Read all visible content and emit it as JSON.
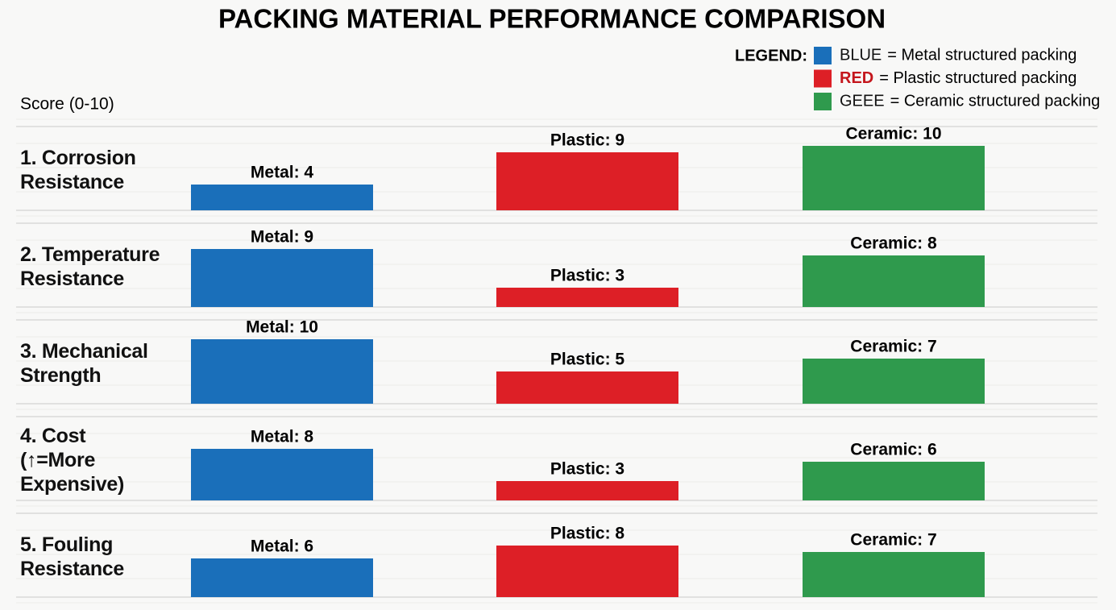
{
  "chart_data": {
    "type": "bar",
    "title": "PACKING MATERIAL PERFORMANCE COMPARISON",
    "y_label": "Score (0-10)",
    "legend_label": "LEGEND:",
    "legend": "top-right",
    "categories": [
      "1. Corrosion\nResistance",
      "2. Temperature\nResistance",
      "3. Mechanical\nStrength",
      "4. Cost\n(↑=More\nExpensive)",
      "5. Fouling\nResistance"
    ],
    "ylim": [
      0,
      10
    ],
    "series": [
      {
        "name": "= Metal structured packing",
        "legend_key": "BLUE",
        "key_color": "#111111",
        "color": "#1a6fba",
        "values": [
          4,
          9,
          10,
          8,
          6
        ],
        "value_labels": [
          "Metal: 4",
          "Metal: 9",
          "Metal: 10",
          "Metal: 8",
          "Metal: 6"
        ]
      },
      {
        "name": "= Plastic structured packing",
        "legend_key": "RED",
        "key_color": "#c4161c",
        "color": "#dd1f26",
        "values": [
          9,
          3,
          5,
          3,
          8
        ],
        "value_labels": [
          "Plastic: 9",
          "Plastic: 3",
          "Plastic: 5",
          "Plastic: 3",
          "Plastic: 8"
        ]
      },
      {
        "name": "= Ceramic structured packing",
        "legend_key": "GEEE",
        "key_color": "#111111",
        "color": "#2f9a4d",
        "values": [
          10,
          8,
          7,
          6,
          7
        ],
        "value_labels": [
          "Ceramic: 10",
          "Ceramic: 8",
          "Ceramic: 7",
          "Ceramic: 6",
          "Ceramic: 7"
        ]
      }
    ]
  }
}
